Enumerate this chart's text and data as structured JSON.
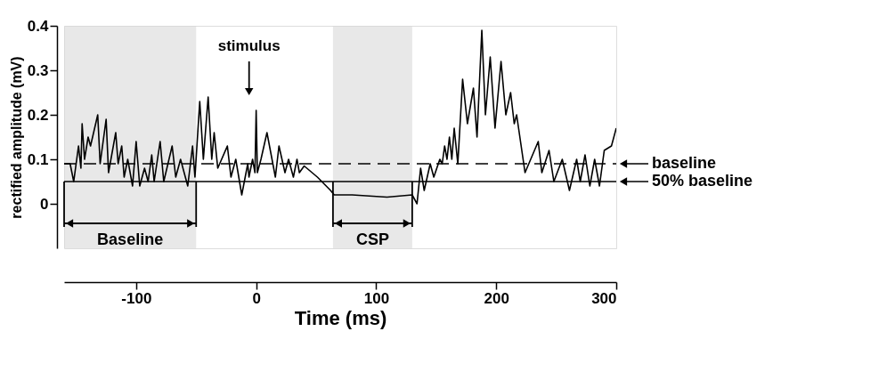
{
  "chart_data": {
    "type": "line",
    "xlabel": "Time (ms)",
    "ylabel": "rectified amplitude (mV)",
    "xlim": [
      -160,
      300
    ],
    "xticks": [
      -100,
      0,
      100,
      200,
      300
    ],
    "ylim": [
      -0.1,
      0.4
    ],
    "yticks": [
      0,
      0.1,
      0.2,
      0.3,
      0.4
    ],
    "grid": false,
    "line_style": "solid",
    "marker": "none",
    "series": [
      {
        "color": "#000000",
        "x": [
          -160,
          -155,
          -152,
          -148,
          -146,
          -145,
          -143,
          -140,
          -138,
          -132,
          -130,
          -125,
          -123,
          -117,
          -115,
          -112,
          -110,
          -107,
          -103,
          -100,
          -97,
          -93,
          -90,
          -87,
          -85,
          -80,
          -77,
          -70,
          -67,
          -63,
          -57,
          -53,
          -51,
          -47,
          -44,
          -40,
          -37,
          -35,
          -32,
          -24,
          -21,
          -17,
          -12,
          -7,
          -6,
          -3,
          -1,
          0,
          1,
          4,
          9,
          16,
          19,
          24,
          27,
          31,
          34,
          36,
          40,
          51,
          62,
          65,
          80,
          109,
          130,
          134,
          137,
          140,
          145,
          148,
          153,
          155,
          157,
          159,
          161,
          163,
          165,
          168,
          172,
          176,
          181,
          184,
          188,
          191,
          195,
          199,
          204,
          208,
          212,
          215,
          217,
          224,
          235,
          238,
          244,
          248,
          255,
          261,
          267,
          270,
          274,
          278,
          282,
          286,
          290,
          296,
          300
        ],
        "values": [
          0.09,
          0.09,
          0.05,
          0.13,
          0.08,
          0.18,
          0.1,
          0.15,
          0.13,
          0.2,
          0.09,
          0.19,
          0.07,
          0.16,
          0.09,
          0.13,
          0.06,
          0.1,
          0.04,
          0.14,
          0.04,
          0.08,
          0.05,
          0.11,
          0.05,
          0.14,
          0.05,
          0.13,
          0.06,
          0.1,
          0.04,
          0.13,
          0.06,
          0.23,
          0.1,
          0.24,
          0.1,
          0.16,
          0.08,
          0.13,
          0.06,
          0.1,
          0.02,
          0.09,
          0.06,
          0.1,
          0.07,
          0.21,
          0.07,
          0.1,
          0.16,
          0.06,
          0.13,
          0.07,
          0.1,
          0.06,
          0.1,
          0.07,
          0.085,
          0.06,
          0.03,
          0.02,
          0.02,
          0.015,
          0.02,
          0.0,
          0.08,
          0.03,
          0.09,
          0.06,
          0.1,
          0.09,
          0.13,
          0.1,
          0.15,
          0.1,
          0.17,
          0.09,
          0.28,
          0.18,
          0.26,
          0.15,
          0.39,
          0.2,
          0.33,
          0.17,
          0.32,
          0.2,
          0.25,
          0.18,
          0.2,
          0.07,
          0.14,
          0.07,
          0.12,
          0.05,
          0.1,
          0.03,
          0.1,
          0.05,
          0.11,
          0.04,
          0.1,
          0.04,
          0.12,
          0.13,
          0.17
        ]
      }
    ],
    "ref_lines": [
      {
        "axis": "y",
        "value": 0.09,
        "label": "baseline",
        "color": "#000000",
        "line_style": "dashed"
      },
      {
        "axis": "y",
        "value": 0.05,
        "label": "50% baseline",
        "color": "#000000",
        "line_style": "solid"
      }
    ],
    "bands": [
      {
        "axis": "x",
        "from": -160,
        "to": -50,
        "label": "Baseline"
      },
      {
        "axis": "x",
        "from": 64,
        "to": 130,
        "label": "CSP"
      }
    ],
    "annotations": [
      "stimulus"
    ]
  }
}
